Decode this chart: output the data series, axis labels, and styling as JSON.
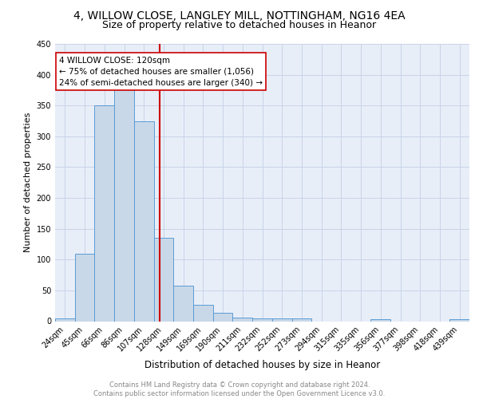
{
  "title1": "4, WILLOW CLOSE, LANGLEY MILL, NOTTINGHAM, NG16 4EA",
  "title2": "Size of property relative to detached houses in Heanor",
  "xlabel": "Distribution of detached houses by size in Heanor",
  "ylabel": "Number of detached properties",
  "categories": [
    "24sqm",
    "45sqm",
    "66sqm",
    "86sqm",
    "107sqm",
    "128sqm",
    "149sqm",
    "169sqm",
    "190sqm",
    "211sqm",
    "232sqm",
    "252sqm",
    "273sqm",
    "294sqm",
    "315sqm",
    "335sqm",
    "356sqm",
    "377sqm",
    "398sqm",
    "418sqm",
    "439sqm"
  ],
  "values": [
    5,
    110,
    350,
    380,
    325,
    135,
    57,
    26,
    14,
    6,
    5,
    5,
    5,
    0,
    0,
    0,
    3,
    0,
    0,
    0,
    3
  ],
  "bar_color": "#c8d8e8",
  "bar_edge_color": "#5b9bd5",
  "bar_width": 1.0,
  "vline_x": 4.82,
  "vline_color": "#cc0000",
  "annotation_line1": "4 WILLOW CLOSE: 120sqm",
  "annotation_line2": "← 75% of detached houses are smaller (1,056)",
  "annotation_line3": "24% of semi-detached houses are larger (340) →",
  "annotation_box_color": "white",
  "annotation_box_edge_color": "#cc0000",
  "ylim": [
    0,
    450
  ],
  "yticks": [
    0,
    50,
    100,
    150,
    200,
    250,
    300,
    350,
    400,
    450
  ],
  "grid_color": "#c8d4e8",
  "background_color": "#e8eef8",
  "footnote": "Contains HM Land Registry data © Crown copyright and database right 2024.\nContains public sector information licensed under the Open Government Licence v3.0.",
  "title1_fontsize": 10,
  "title2_fontsize": 9,
  "xlabel_fontsize": 8.5,
  "ylabel_fontsize": 8,
  "tick_fontsize": 7,
  "annotation_fontsize": 7.5,
  "footnote_fontsize": 6
}
